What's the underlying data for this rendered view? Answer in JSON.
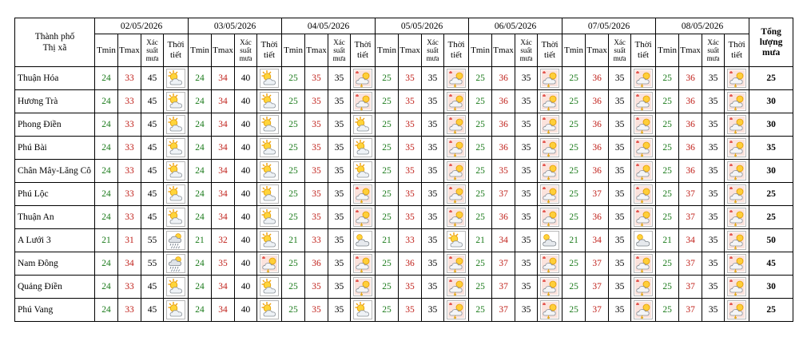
{
  "header": {
    "location_label": "Thành phố\nThị xã",
    "dates": [
      "02/05/2026",
      "03/05/2026",
      "04/05/2026",
      "05/05/2026",
      "06/05/2026",
      "07/05/2026",
      "08/05/2026"
    ],
    "col_tmin": "Tmin",
    "col_tmax": "Tmax",
    "col_rain_prob": "Xác\nsuất\nmưa",
    "col_weather": "Thời\ntiết",
    "col_total": "Tổng\nlượng\nmưa"
  },
  "rows": [
    {
      "name": "Thuận Hóa",
      "total": "25",
      "days": [
        {
          "tmin": "24",
          "tmax": "33",
          "prob": "45",
          "icon": "sun-cloud-icon"
        },
        {
          "tmin": "24",
          "tmax": "34",
          "prob": "40",
          "icon": "sun-cloud-icon"
        },
        {
          "tmin": "25",
          "tmax": "35",
          "prob": "35",
          "icon": "thunder-icon"
        },
        {
          "tmin": "25",
          "tmax": "35",
          "prob": "35",
          "icon": "thunder-icon"
        },
        {
          "tmin": "25",
          "tmax": "36",
          "prob": "35",
          "icon": "thunder-icon"
        },
        {
          "tmin": "25",
          "tmax": "36",
          "prob": "35",
          "icon": "thunder-icon"
        },
        {
          "tmin": "25",
          "tmax": "36",
          "prob": "35",
          "icon": "thunder-icon"
        }
      ]
    },
    {
      "name": "Hương Trà",
      "total": "30",
      "days": [
        {
          "tmin": "24",
          "tmax": "33",
          "prob": "45",
          "icon": "sun-cloud-icon"
        },
        {
          "tmin": "24",
          "tmax": "34",
          "prob": "40",
          "icon": "sun-cloud-icon"
        },
        {
          "tmin": "25",
          "tmax": "35",
          "prob": "35",
          "icon": "thunder-icon"
        },
        {
          "tmin": "25",
          "tmax": "35",
          "prob": "35",
          "icon": "thunder-icon"
        },
        {
          "tmin": "25",
          "tmax": "36",
          "prob": "35",
          "icon": "thunder-icon"
        },
        {
          "tmin": "25",
          "tmax": "36",
          "prob": "35",
          "icon": "thunder-icon"
        },
        {
          "tmin": "25",
          "tmax": "36",
          "prob": "35",
          "icon": "thunder-icon"
        }
      ]
    },
    {
      "name": "Phong Điền",
      "total": "30",
      "days": [
        {
          "tmin": "24",
          "tmax": "33",
          "prob": "45",
          "icon": "sun-cloud-icon"
        },
        {
          "tmin": "24",
          "tmax": "34",
          "prob": "40",
          "icon": "sun-cloud-icon"
        },
        {
          "tmin": "25",
          "tmax": "35",
          "prob": "35",
          "icon": "sun-cloud-icon"
        },
        {
          "tmin": "25",
          "tmax": "35",
          "prob": "35",
          "icon": "thunder-icon"
        },
        {
          "tmin": "25",
          "tmax": "36",
          "prob": "35",
          "icon": "thunder-icon"
        },
        {
          "tmin": "25",
          "tmax": "36",
          "prob": "35",
          "icon": "thunder-icon"
        },
        {
          "tmin": "25",
          "tmax": "36",
          "prob": "35",
          "icon": "thunder-icon"
        }
      ]
    },
    {
      "name": "Phú Bài",
      "total": "35",
      "days": [
        {
          "tmin": "24",
          "tmax": "33",
          "prob": "45",
          "icon": "sun-cloud-icon"
        },
        {
          "tmin": "24",
          "tmax": "34",
          "prob": "40",
          "icon": "sun-cloud-icon"
        },
        {
          "tmin": "25",
          "tmax": "35",
          "prob": "35",
          "icon": "sun-cloud-icon"
        },
        {
          "tmin": "25",
          "tmax": "35",
          "prob": "35",
          "icon": "thunder-icon"
        },
        {
          "tmin": "25",
          "tmax": "36",
          "prob": "35",
          "icon": "thunder-icon"
        },
        {
          "tmin": "25",
          "tmax": "36",
          "prob": "35",
          "icon": "thunder-icon"
        },
        {
          "tmin": "25",
          "tmax": "36",
          "prob": "35",
          "icon": "thunder-icon"
        }
      ]
    },
    {
      "name": "Chân Mây-Lăng Cô",
      "total": "30",
      "days": [
        {
          "tmin": "24",
          "tmax": "33",
          "prob": "45",
          "icon": "sun-cloud-icon"
        },
        {
          "tmin": "24",
          "tmax": "34",
          "prob": "40",
          "icon": "sun-cloud-icon"
        },
        {
          "tmin": "25",
          "tmax": "35",
          "prob": "35",
          "icon": "sun-cloud-icon"
        },
        {
          "tmin": "25",
          "tmax": "35",
          "prob": "35",
          "icon": "thunder-icon"
        },
        {
          "tmin": "25",
          "tmax": "35",
          "prob": "35",
          "icon": "thunder-icon"
        },
        {
          "tmin": "25",
          "tmax": "36",
          "prob": "35",
          "icon": "thunder-icon"
        },
        {
          "tmin": "25",
          "tmax": "36",
          "prob": "35",
          "icon": "thunder-icon"
        }
      ]
    },
    {
      "name": "Phú Lộc",
      "total": "25",
      "days": [
        {
          "tmin": "24",
          "tmax": "33",
          "prob": "45",
          "icon": "sun-cloud-icon"
        },
        {
          "tmin": "24",
          "tmax": "34",
          "prob": "40",
          "icon": "sun-cloud-icon"
        },
        {
          "tmin": "25",
          "tmax": "35",
          "prob": "35",
          "icon": "thunder-icon"
        },
        {
          "tmin": "25",
          "tmax": "35",
          "prob": "35",
          "icon": "thunder-icon"
        },
        {
          "tmin": "25",
          "tmax": "37",
          "prob": "35",
          "icon": "thunder-icon"
        },
        {
          "tmin": "25",
          "tmax": "37",
          "prob": "35",
          "icon": "thunder-icon"
        },
        {
          "tmin": "25",
          "tmax": "37",
          "prob": "35",
          "icon": "thunder-icon"
        }
      ]
    },
    {
      "name": "Thuận An",
      "total": "25",
      "days": [
        {
          "tmin": "24",
          "tmax": "33",
          "prob": "45",
          "icon": "sun-cloud-icon"
        },
        {
          "tmin": "24",
          "tmax": "34",
          "prob": "40",
          "icon": "sun-cloud-icon"
        },
        {
          "tmin": "25",
          "tmax": "35",
          "prob": "35",
          "icon": "thunder-icon"
        },
        {
          "tmin": "25",
          "tmax": "35",
          "prob": "35",
          "icon": "thunder-icon"
        },
        {
          "tmin": "25",
          "tmax": "36",
          "prob": "35",
          "icon": "thunder-icon"
        },
        {
          "tmin": "25",
          "tmax": "36",
          "prob": "35",
          "icon": "thunder-icon"
        },
        {
          "tmin": "25",
          "tmax": "37",
          "prob": "35",
          "icon": "thunder-icon"
        }
      ]
    },
    {
      "name": "A Lưới 3",
      "total": "50",
      "days": [
        {
          "tmin": "21",
          "tmax": "31",
          "prob": "55",
          "icon": "rain-icon"
        },
        {
          "tmin": "21",
          "tmax": "32",
          "prob": "40",
          "icon": "sun-cloud-icon"
        },
        {
          "tmin": "21",
          "tmax": "33",
          "prob": "35",
          "icon": "cloud-icon"
        },
        {
          "tmin": "21",
          "tmax": "33",
          "prob": "35",
          "icon": "sun-cloud-icon"
        },
        {
          "tmin": "21",
          "tmax": "34",
          "prob": "35",
          "icon": "cloud-icon"
        },
        {
          "tmin": "21",
          "tmax": "34",
          "prob": "35",
          "icon": "cloud-icon"
        },
        {
          "tmin": "21",
          "tmax": "34",
          "prob": "35",
          "icon": "thunder-icon"
        }
      ]
    },
    {
      "name": "Nam Đông",
      "total": "45",
      "days": [
        {
          "tmin": "24",
          "tmax": "34",
          "prob": "55",
          "icon": "rain-icon"
        },
        {
          "tmin": "24",
          "tmax": "35",
          "prob": "40",
          "icon": "thunder-icon"
        },
        {
          "tmin": "25",
          "tmax": "36",
          "prob": "35",
          "icon": "thunder-icon"
        },
        {
          "tmin": "25",
          "tmax": "36",
          "prob": "35",
          "icon": "thunder-icon"
        },
        {
          "tmin": "25",
          "tmax": "37",
          "prob": "35",
          "icon": "thunder-icon"
        },
        {
          "tmin": "25",
          "tmax": "37",
          "prob": "35",
          "icon": "thunder-icon"
        },
        {
          "tmin": "25",
          "tmax": "37",
          "prob": "35",
          "icon": "thunder-icon"
        }
      ]
    },
    {
      "name": "Quảng Điền",
      "total": "30",
      "days": [
        {
          "tmin": "24",
          "tmax": "33",
          "prob": "45",
          "icon": "sun-cloud-icon"
        },
        {
          "tmin": "24",
          "tmax": "34",
          "prob": "40",
          "icon": "sun-cloud-icon"
        },
        {
          "tmin": "25",
          "tmax": "35",
          "prob": "35",
          "icon": "thunder-icon"
        },
        {
          "tmin": "25",
          "tmax": "35",
          "prob": "35",
          "icon": "thunder-icon"
        },
        {
          "tmin": "25",
          "tmax": "37",
          "prob": "35",
          "icon": "thunder-icon"
        },
        {
          "tmin": "25",
          "tmax": "37",
          "prob": "35",
          "icon": "thunder-icon"
        },
        {
          "tmin": "25",
          "tmax": "37",
          "prob": "35",
          "icon": "thunder-icon"
        }
      ]
    },
    {
      "name": "Phú Vang",
      "total": "25",
      "days": [
        {
          "tmin": "24",
          "tmax": "33",
          "prob": "45",
          "icon": "sun-cloud-icon"
        },
        {
          "tmin": "24",
          "tmax": "34",
          "prob": "40",
          "icon": "sun-cloud-icon"
        },
        {
          "tmin": "25",
          "tmax": "35",
          "prob": "35",
          "icon": "sun-cloud-icon"
        },
        {
          "tmin": "25",
          "tmax": "35",
          "prob": "35",
          "icon": "thunder-icon"
        },
        {
          "tmin": "25",
          "tmax": "37",
          "prob": "35",
          "icon": "thunder-icon"
        },
        {
          "tmin": "25",
          "tmax": "37",
          "prob": "35",
          "icon": "thunder-icon"
        },
        {
          "tmin": "25",
          "tmax": "37",
          "prob": "35",
          "icon": "thunder-icon"
        }
      ]
    }
  ],
  "colors": {
    "tmin": "#1a7a1a",
    "tmax": "#c0201a",
    "border": "#000000"
  }
}
